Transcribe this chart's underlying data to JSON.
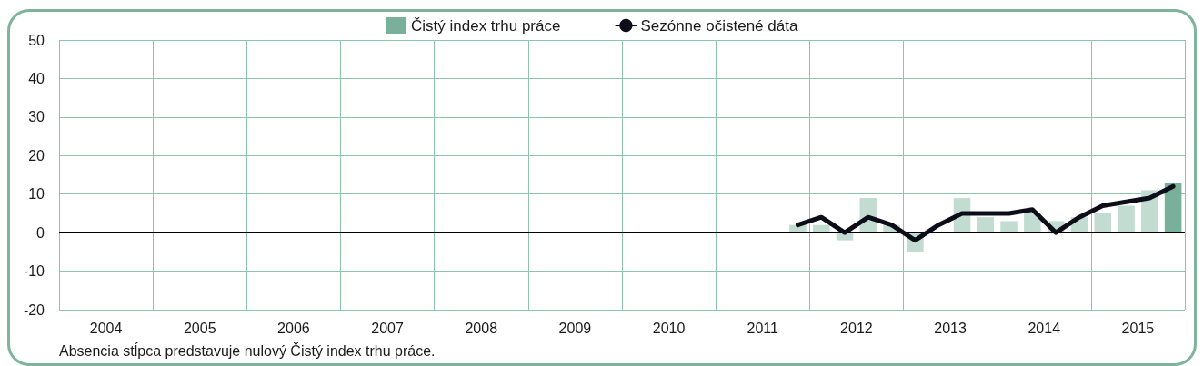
{
  "chart_data": {
    "type": "bar",
    "x": [
      2011.875,
      2012.125,
      2012.375,
      2012.625,
      2012.875,
      2013.125,
      2013.375,
      2013.625,
      2013.875,
      2014.125,
      2014.375,
      2014.625,
      2014.875,
      2015.125,
      2015.375,
      2015.625,
      2015.875
    ],
    "series": [
      {
        "name": "Čistý index trhu práce",
        "color": "#78b09a",
        "colors": [
          "#c3dcd1",
          "#c3dcd1",
          "#c3dcd1",
          "#c3dcd1",
          "#c3dcd1",
          "#c3dcd1",
          "#c3dcd1",
          "#c3dcd1",
          "#c3dcd1",
          "#c3dcd1",
          "#c3dcd1",
          "#c3dcd1",
          "#c3dcd1",
          "#c3dcd1",
          "#c3dcd1",
          "#c3dcd1",
          "#78b09a"
        ],
        "values": [
          2,
          2,
          -2,
          9,
          2,
          -5,
          0,
          9,
          4,
          3,
          5,
          3,
          4,
          5,
          7,
          11,
          13
        ]
      },
      {
        "name": "Sezónne očistené dáta",
        "type": "line",
        "color": "#0d0d1a",
        "values": [
          2,
          4,
          0,
          4,
          2,
          -2,
          2,
          5,
          5,
          5,
          6,
          0,
          4,
          7,
          8,
          9,
          12
        ]
      }
    ],
    "xlim": [
      2004,
      2016
    ],
    "xticks": [
      {
        "value": 2004,
        "label": null
      },
      {
        "value": 2004.5,
        "label": "2004"
      },
      {
        "value": 2005,
        "label": null
      },
      {
        "value": 2005.5,
        "label": "2005"
      },
      {
        "value": 2006,
        "label": null
      },
      {
        "value": 2006.5,
        "label": "2006"
      },
      {
        "value": 2007,
        "label": null
      },
      {
        "value": 2007.5,
        "label": "2007"
      },
      {
        "value": 2008,
        "label": null
      },
      {
        "value": 2008.5,
        "label": "2008"
      },
      {
        "value": 2009,
        "label": null
      },
      {
        "value": 2009.5,
        "label": "2009"
      },
      {
        "value": 2010,
        "label": null
      },
      {
        "value": 2010.5,
        "label": "2010"
      },
      {
        "value": 2011,
        "label": null
      },
      {
        "value": 2011.5,
        "label": "2011"
      },
      {
        "value": 2012,
        "label": null
      },
      {
        "value": 2012.5,
        "label": "2012"
      },
      {
        "value": 2013,
        "label": null
      },
      {
        "value": 2013.5,
        "label": "2013"
      },
      {
        "value": 2014,
        "label": null
      },
      {
        "value": 2014.5,
        "label": "2014"
      },
      {
        "value": 2015,
        "label": null
      },
      {
        "value": 2015.5,
        "label": "2015"
      },
      {
        "value": 2016,
        "label": null
      }
    ],
    "ylim": [
      -20,
      50
    ],
    "yticks": [
      -20,
      -10,
      0,
      10,
      20,
      30,
      40,
      50
    ],
    "ref_lines": [
      {
        "axis": "y",
        "value": 0,
        "color": "#000000"
      }
    ],
    "grid": true,
    "legend": "top",
    "annotations": [
      "Absencia stĺpca predstavuje nulový Čistý index trhu práce."
    ]
  }
}
